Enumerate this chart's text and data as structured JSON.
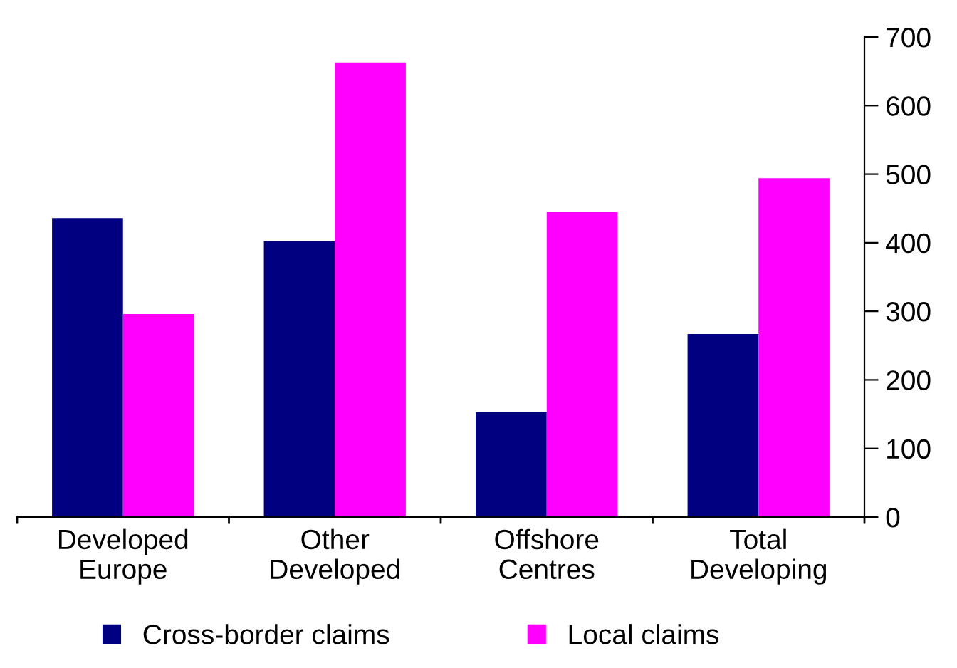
{
  "chart_data": {
    "type": "bar",
    "categories": [
      "Developed\nEurope",
      "Other\nDeveloped",
      "Offshore\nCentres",
      "Total\nDeveloping"
    ],
    "series": [
      {
        "name": "Cross-border claims",
        "color": "#000080",
        "values": [
          436,
          402,
          153,
          267
        ]
      },
      {
        "name": "Local claims",
        "color": "#ff00ff",
        "values": [
          296,
          663,
          445,
          494
        ]
      }
    ],
    "ylim": [
      0,
      700
    ],
    "yticks": [
      0,
      100,
      200,
      300,
      400,
      500,
      600,
      700
    ],
    "grid": false,
    "legend": "bottom"
  }
}
